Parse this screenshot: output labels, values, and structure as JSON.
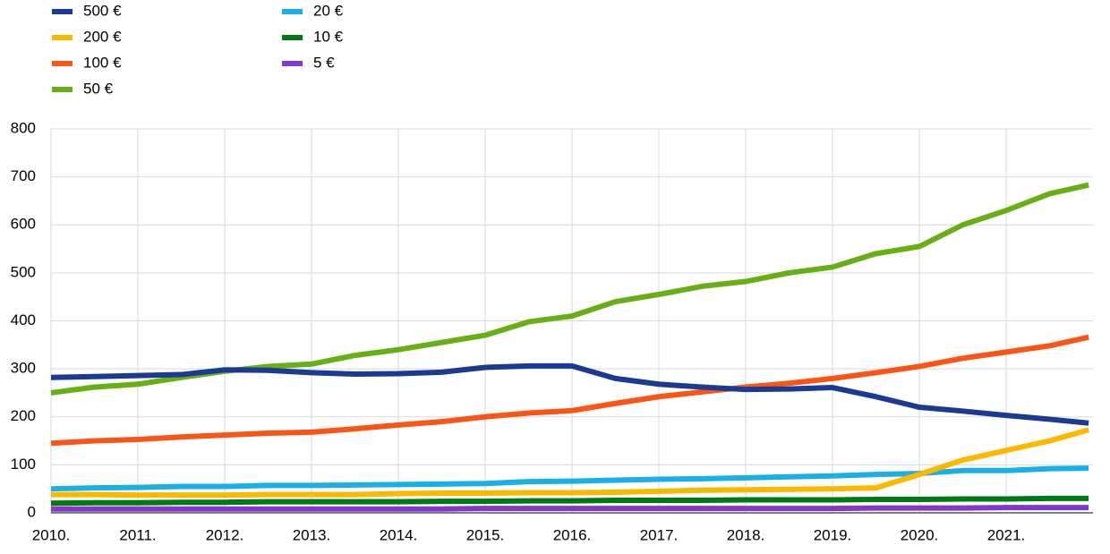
{
  "chart_data": {
    "type": "line",
    "x": [
      2010,
      2010.5,
      2011,
      2011.5,
      2012,
      2012.5,
      2013,
      2013.5,
      2014,
      2014.5,
      2015,
      2015.5,
      2016,
      2016.5,
      2017,
      2017.5,
      2018,
      2018.5,
      2019,
      2019.5,
      2020,
      2020.5,
      2021,
      2021.5,
      2021.95
    ],
    "series": [
      {
        "name": "500 €",
        "color": "#1a3a93",
        "values": [
          282,
          284,
          286,
          288,
          298,
          297,
          292,
          289,
          290,
          293,
          303,
          306,
          306,
          280,
          268,
          262,
          257,
          258,
          261,
          242,
          220,
          212,
          203,
          195,
          187
        ]
      },
      {
        "name": "200 €",
        "color": "#fbb800",
        "values": [
          38,
          38,
          37,
          37,
          37,
          38,
          38,
          38,
          40,
          41,
          41,
          42,
          42,
          43,
          45,
          47,
          48,
          49,
          50,
          52,
          80,
          110,
          130,
          150,
          173
        ]
      },
      {
        "name": "100 €",
        "color": "#f95516",
        "values": [
          145,
          150,
          153,
          158,
          162,
          166,
          168,
          175,
          183,
          190,
          200,
          208,
          213,
          228,
          242,
          252,
          262,
          270,
          280,
          292,
          305,
          322,
          335,
          348,
          366
        ]
      },
      {
        "name": "50 €",
        "color": "#66b016",
        "values": [
          250,
          262,
          268,
          282,
          295,
          305,
          310,
          328,
          340,
          355,
          370,
          398,
          410,
          440,
          455,
          472,
          482,
          500,
          512,
          540,
          555,
          600,
          630,
          665,
          683
        ]
      },
      {
        "name": "20 €",
        "color": "#1ab0e6",
        "values": [
          50,
          52,
          53,
          55,
          55,
          57,
          57,
          58,
          59,
          60,
          61,
          65,
          66,
          68,
          70,
          71,
          73,
          75,
          77,
          80,
          82,
          88,
          88,
          92,
          93
        ]
      },
      {
        "name": "10 €",
        "color": "#007816",
        "values": [
          20,
          21,
          21,
          22,
          22,
          23,
          23,
          23,
          23,
          24,
          24,
          25,
          25,
          26,
          26,
          26,
          27,
          27,
          27,
          28,
          28,
          29,
          29,
          30,
          30
        ]
      },
      {
        "name": "5 €",
        "color": "#8139c6",
        "values": [
          8,
          8,
          8,
          8,
          8,
          8,
          8,
          8,
          8,
          8,
          9,
          9,
          9,
          9,
          9,
          9,
          9,
          9,
          9,
          10,
          10,
          10,
          11,
          11,
          11
        ]
      }
    ],
    "xlim": [
      2010,
      2022
    ],
    "xticks": [
      {
        "value": 2010,
        "label": "2010."
      },
      {
        "value": 2011,
        "label": "2011."
      },
      {
        "value": 2012,
        "label": "2012."
      },
      {
        "value": 2013,
        "label": "2013."
      },
      {
        "value": 2014,
        "label": "2014."
      },
      {
        "value": 2015,
        "label": "2015."
      },
      {
        "value": 2016,
        "label": "2016."
      },
      {
        "value": 2017,
        "label": "2017."
      },
      {
        "value": 2018,
        "label": "2018."
      },
      {
        "value": 2019,
        "label": "2019."
      },
      {
        "value": 2020,
        "label": "2020."
      },
      {
        "value": 2021,
        "label": "2021."
      }
    ],
    "ylim": [
      0,
      800
    ],
    "yticks": [
      0,
      100,
      200,
      300,
      400,
      500,
      600,
      700,
      800
    ],
    "grid": true
  }
}
